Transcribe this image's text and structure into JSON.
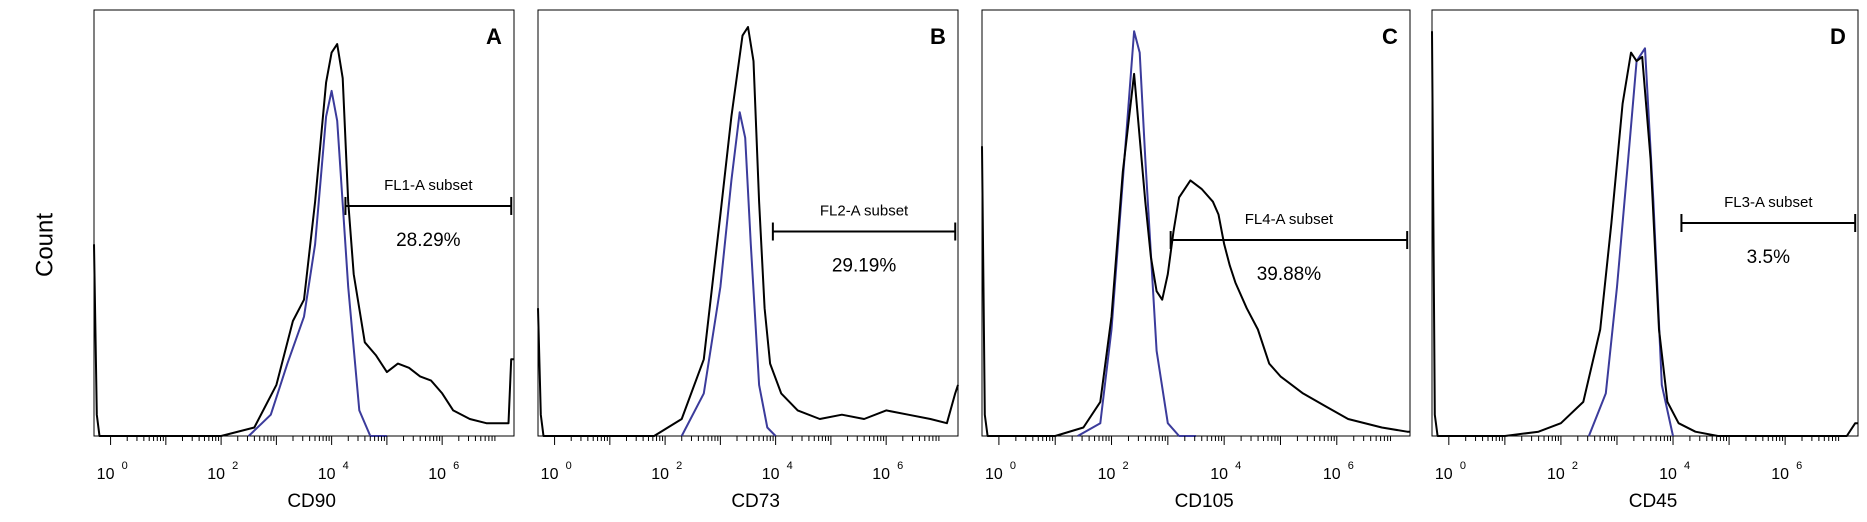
{
  "ylabel": "Count",
  "chart_data": [
    {
      "type": "line",
      "panel_label": "A",
      "xlabel": "CD90",
      "xscale": "log",
      "xlim": [
        -0.3,
        7.3
      ],
      "ylim": [
        0,
        100
      ],
      "ticks": [
        {
          "base": "10",
          "exp": "0",
          "x": 0
        },
        {
          "base": "10",
          "exp": "2",
          "x": 2
        },
        {
          "base": "10",
          "exp": "4",
          "x": 4
        },
        {
          "base": "10",
          "exp": "6",
          "x": 6
        }
      ],
      "gate": {
        "name": "FL1-A subset",
        "percent": "28.29%",
        "x_start": 4.25,
        "x_end": 7.25,
        "y": 54
      },
      "series": [
        {
          "color": "#000000",
          "x": [
            -0.3,
            -0.25,
            -0.2,
            0.0,
            1.0,
            2.0,
            2.6,
            3.0,
            3.3,
            3.5,
            3.7,
            3.9,
            4.0,
            4.1,
            4.2,
            4.3,
            4.4,
            4.6,
            4.8,
            5.0,
            5.2,
            5.4,
            5.6,
            5.8,
            6.0,
            6.2,
            6.5,
            6.8,
            7.0,
            7.2,
            7.25,
            7.3
          ],
          "y": [
            45,
            5,
            0,
            0,
            0,
            0,
            2,
            12,
            27,
            32,
            55,
            83,
            90,
            92,
            84,
            55,
            38,
            22,
            19,
            15,
            17,
            16,
            14,
            13,
            10,
            6,
            4,
            3,
            3,
            3,
            18,
            18
          ]
        },
        {
          "color": "#3b3b9b",
          "x": [
            2.5,
            2.9,
            3.2,
            3.5,
            3.7,
            3.9,
            4.0,
            4.1,
            4.3,
            4.5,
            4.7,
            5.0
          ],
          "y": [
            0,
            5,
            17,
            28,
            45,
            75,
            81,
            74,
            35,
            6,
            0,
            0
          ]
        }
      ]
    },
    {
      "type": "line",
      "panel_label": "B",
      "xlabel": "CD73",
      "xscale": "log",
      "xlim": [
        -0.3,
        7.3
      ],
      "ylim": [
        0,
        100
      ],
      "ticks": [
        {
          "base": "10",
          "exp": "0",
          "x": 0
        },
        {
          "base": "10",
          "exp": "2",
          "x": 2
        },
        {
          "base": "10",
          "exp": "4",
          "x": 4
        },
        {
          "base": "10",
          "exp": "6",
          "x": 6
        }
      ],
      "gate": {
        "name": "FL2-A subset",
        "percent": "29.19%",
        "x_start": 3.95,
        "x_end": 7.25,
        "y": 48
      },
      "series": [
        {
          "color": "#000000",
          "x": [
            -0.3,
            -0.25,
            -0.2,
            0.0,
            1.0,
            1.8,
            2.3,
            2.7,
            3.0,
            3.2,
            3.4,
            3.5,
            3.6,
            3.7,
            3.8,
            3.9,
            4.1,
            4.4,
            4.8,
            5.2,
            5.6,
            6.0,
            6.4,
            6.8,
            7.1,
            7.25,
            7.3
          ],
          "y": [
            30,
            5,
            0,
            0,
            0,
            0,
            4,
            18,
            52,
            75,
            94,
            96,
            88,
            55,
            30,
            17,
            10,
            6,
            4,
            5,
            4,
            6,
            5,
            4,
            3,
            10,
            12
          ]
        },
        {
          "color": "#3b3b9b",
          "x": [
            2.3,
            2.7,
            3.0,
            3.2,
            3.35,
            3.45,
            3.55,
            3.7,
            3.85,
            4.0
          ],
          "y": [
            0,
            10,
            35,
            60,
            76,
            70,
            45,
            12,
            2,
            0
          ]
        }
      ]
    },
    {
      "type": "line",
      "panel_label": "C",
      "xlabel": "CD105",
      "xscale": "log",
      "xlim": [
        -0.3,
        7.3
      ],
      "ylim": [
        0,
        100
      ],
      "ticks": [
        {
          "base": "10",
          "exp": "0",
          "x": 0
        },
        {
          "base": "10",
          "exp": "2",
          "x": 2
        },
        {
          "base": "10",
          "exp": "4",
          "x": 4
        },
        {
          "base": "10",
          "exp": "6",
          "x": 6
        }
      ],
      "gate": {
        "name": "FL4-A subset",
        "percent": "39.88%",
        "x_start": 3.05,
        "x_end": 7.25,
        "y": 46
      },
      "series": [
        {
          "color": "#000000",
          "x": [
            -0.3,
            -0.25,
            -0.2,
            0.0,
            1.0,
            1.5,
            1.8,
            2.0,
            2.2,
            2.4,
            2.5,
            2.6,
            2.7,
            2.8,
            2.9,
            3.0,
            3.1,
            3.2,
            3.4,
            3.6,
            3.8,
            3.9,
            4.0,
            4.1,
            4.2,
            4.4,
            4.6,
            4.8,
            5.0,
            5.4,
            5.8,
            6.2,
            6.8,
            7.25,
            7.3
          ],
          "y": [
            68,
            5,
            0,
            0,
            0,
            2,
            8,
            28,
            62,
            85,
            70,
            55,
            42,
            34,
            32,
            38,
            48,
            56,
            60,
            58,
            55,
            52,
            45,
            40,
            36,
            30,
            25,
            17,
            14,
            10,
            7,
            4,
            2,
            1,
            1
          ]
        },
        {
          "color": "#3b3b9b",
          "x": [
            1.4,
            1.8,
            2.0,
            2.2,
            2.4,
            2.5,
            2.6,
            2.8,
            3.0,
            3.2,
            3.5
          ],
          "y": [
            0,
            3,
            25,
            60,
            95,
            90,
            65,
            20,
            3,
            0,
            0
          ]
        }
      ]
    },
    {
      "type": "line",
      "panel_label": "D",
      "xlabel": "CD45",
      "xscale": "log",
      "xlim": [
        -0.3,
        7.3
      ],
      "ylim": [
        0,
        100
      ],
      "ticks": [
        {
          "base": "10",
          "exp": "0",
          "x": 0
        },
        {
          "base": "10",
          "exp": "2",
          "x": 2
        },
        {
          "base": "10",
          "exp": "4",
          "x": 4
        },
        {
          "base": "10",
          "exp": "6",
          "x": 6
        }
      ],
      "gate": {
        "name": "FL3-A subset",
        "percent": "3.5%",
        "x_start": 4.15,
        "x_end": 7.25,
        "y": 50
      },
      "series": [
        {
          "color": "#000000",
          "x": [
            -0.3,
            -0.25,
            -0.2,
            0.0,
            1.0,
            1.6,
            2.0,
            2.4,
            2.7,
            2.9,
            3.1,
            3.25,
            3.35,
            3.45,
            3.6,
            3.75,
            3.9,
            4.1,
            4.4,
            4.8,
            5.2,
            5.6,
            6.0,
            6.4,
            6.8,
            7.1,
            7.25,
            7.3
          ],
          "y": [
            95,
            5,
            0,
            0,
            0,
            1,
            3,
            8,
            25,
            50,
            78,
            90,
            88,
            89,
            65,
            25,
            8,
            3,
            1,
            0,
            0,
            0,
            0,
            0,
            0,
            0,
            3,
            3
          ]
        },
        {
          "color": "#3b3b9b",
          "x": [
            2.5,
            2.8,
            3.0,
            3.2,
            3.35,
            3.5,
            3.65,
            3.8,
            4.0
          ],
          "y": [
            0,
            10,
            35,
            65,
            88,
            91,
            55,
            12,
            0
          ]
        }
      ]
    }
  ]
}
